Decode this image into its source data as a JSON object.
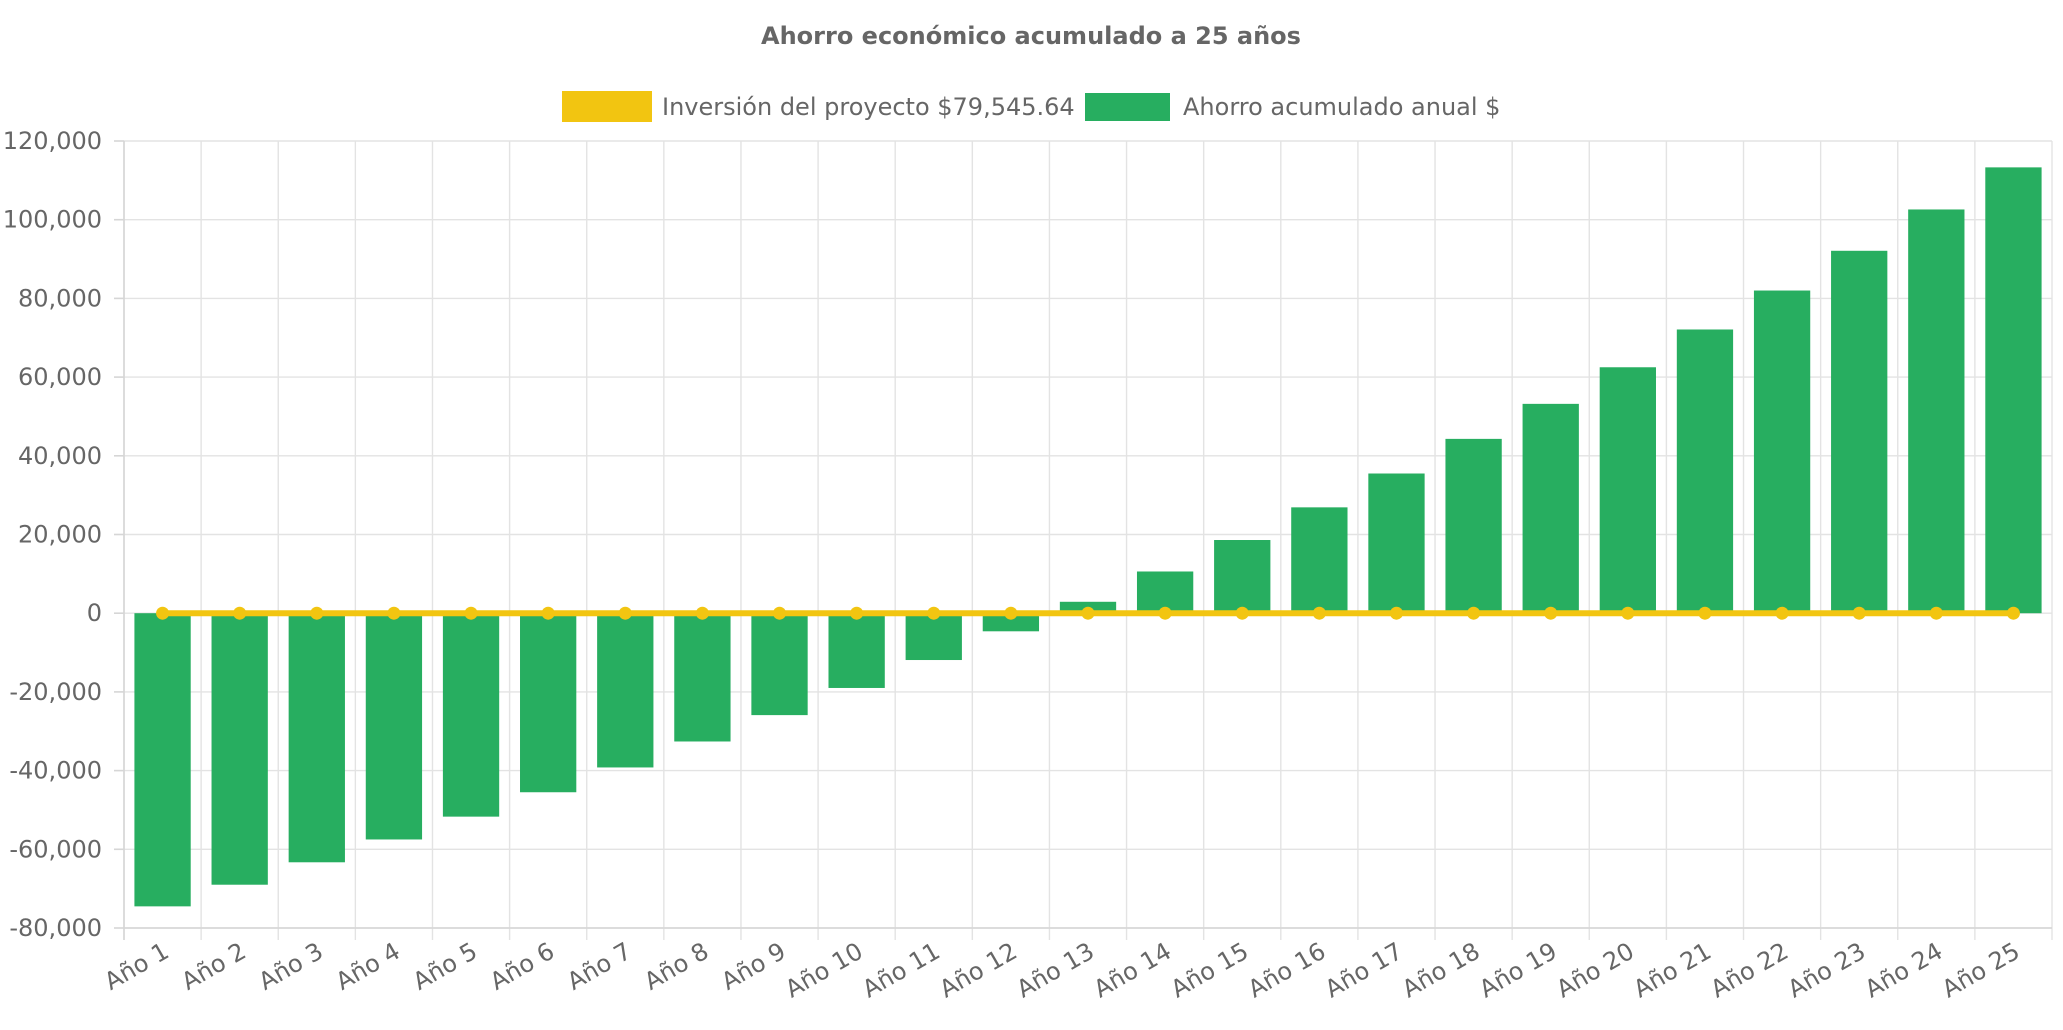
{
  "chart_data": {
    "type": "bar",
    "title": "Ahorro económico acumulado a 25 años",
    "xlabel": "",
    "ylabel": "",
    "categories": [
      "Año 1",
      "Año 2",
      "Año 3",
      "Año 4",
      "Año 5",
      "Año 6",
      "Año 7",
      "Año 8",
      "Año 9",
      "Año 10",
      "Año 11",
      "Año 12",
      "Año 13",
      "Año 14",
      "Año 15",
      "Año 16",
      "Año 17",
      "Año 18",
      "Año 19",
      "Año 20",
      "Año 21",
      "Año 22",
      "Año 23",
      "Año 24",
      "Año 25"
    ],
    "ylim": [
      -80000,
      120000
    ],
    "yticks": [
      120000,
      100000,
      80000,
      60000,
      40000,
      20000,
      0,
      -20000,
      -40000,
      -60000,
      -80000
    ],
    "ytick_labels": [
      "120,000",
      "100,000",
      "80,000",
      "60,000",
      "40,000",
      "20,000",
      "0",
      "-20,000",
      "-40,000",
      "-60,000",
      "-80,000"
    ],
    "grid": true,
    "legend_position": "top-center",
    "series": [
      {
        "name": "Inversión del proyecto $79,545.64",
        "type": "line",
        "color": "#f2c511",
        "values": [
          0,
          0,
          0,
          0,
          0,
          0,
          0,
          0,
          0,
          0,
          0,
          0,
          0,
          0,
          0,
          0,
          0,
          0,
          0,
          0,
          0,
          0,
          0,
          0,
          0
        ]
      },
      {
        "name": "Ahorro acumulado anual $",
        "type": "bar",
        "color": "#27ae60",
        "values": [
          -74500,
          -69000,
          -63300,
          -57500,
          -51700,
          -45500,
          -39200,
          -32600,
          -25900,
          -19000,
          -11900,
          -4600,
          2900,
          10600,
          18600,
          26900,
          35500,
          44300,
          53200,
          62500,
          72100,
          82000,
          92100,
          102600,
          113300
        ]
      }
    ]
  }
}
